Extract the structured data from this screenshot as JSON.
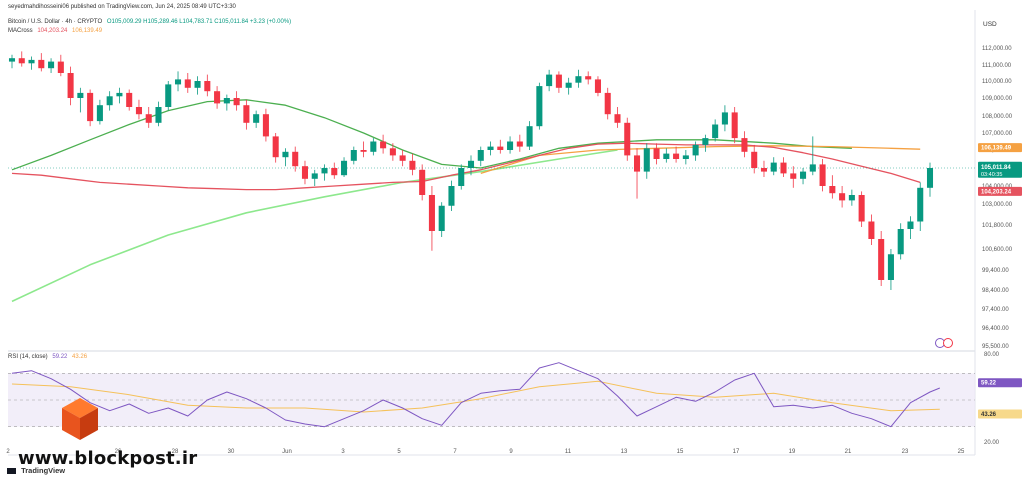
{
  "header": {
    "published_by": "seyedmahdihosseini06 published on TradingView.com, Jun 24, 2025 08:49 UTC+3:30",
    "symbol": "Bitcoin / U.S. Dollar · 4h · CRYPTO",
    "ohlc": "O105,009.29 H105,289.46 L104,783.71 C105,011.84 +3.23 (+0.00%)",
    "indicator": "MACross",
    "ma_fast_value": "104,203.24",
    "ma_slow_value": "106,139.49",
    "currency": "USD"
  },
  "rsi_label": "RSI (14, close)",
  "rsi_values_text": {
    "rsi": "59.22",
    "ma": "43.26"
  },
  "watermark": "www.blockpost.ir",
  "tv_brand": "TradingView",
  "colors": {
    "up": "#089981",
    "down": "#f23645",
    "ma_fast": "#e5535f",
    "ma_slow": "#f5a142",
    "ma_green": "#4caf50",
    "ma_lightgreen": "#8de88d",
    "rsi_line": "#7e57c2",
    "rsi_ma": "#f5c15a",
    "rsi_band": "#ede7f6",
    "last_price": "#089981"
  },
  "chart_data": [
    {
      "type": "candlestick",
      "y_ticks": [
        "112,000.00",
        "111,000.00",
        "110,000.00",
        "109,000.00",
        "108,000.00",
        "107,000.00",
        "106,000.00",
        "105,000.00",
        "104,000.00",
        "103,000.00",
        "101,800.00",
        "100,600.00",
        "99,400.00",
        "98,400.00",
        "97,400.00",
        "96,400.00",
        "95,500.00"
      ],
      "x_ticks": [
        "2",
        "26",
        "28",
        "30",
        "Jun",
        "3",
        "5",
        "7",
        "9",
        "11",
        "13",
        "15",
        "17",
        "19",
        "21",
        "23",
        "25"
      ],
      "price_labels": {
        "ma_slow": "106,139.49",
        "last": "105,011.84",
        "countdown": "03:40:35",
        "ma_fast": "104,203.24"
      },
      "candles": [
        [
          111200,
          111600,
          110800,
          111400
        ],
        [
          111400,
          111800,
          110900,
          111100
        ],
        [
          111100,
          111500,
          110700,
          111300
        ],
        [
          111300,
          111700,
          110600,
          110800
        ],
        [
          110800,
          111400,
          110500,
          111200
        ],
        [
          111200,
          111600,
          110300,
          110500
        ],
        [
          110500,
          110900,
          108600,
          109000
        ],
        [
          109000,
          109600,
          108200,
          109300
        ],
        [
          109300,
          109500,
          107400,
          107700
        ],
        [
          107700,
          108900,
          107500,
          108600
        ],
        [
          108600,
          109400,
          108300,
          109100
        ],
        [
          109100,
          109600,
          108700,
          109300
        ],
        [
          109300,
          109500,
          108300,
          108500
        ],
        [
          108500,
          108900,
          107800,
          108100
        ],
        [
          108100,
          108500,
          107300,
          107600
        ],
        [
          107600,
          108800,
          107400,
          108500
        ],
        [
          108500,
          110000,
          108300,
          109800
        ],
        [
          109800,
          110600,
          109400,
          110100
        ],
        [
          110100,
          110500,
          109300,
          109600
        ],
        [
          109600,
          110300,
          109200,
          110000
        ],
        [
          110000,
          110400,
          109100,
          109400
        ],
        [
          109400,
          109700,
          108400,
          108700
        ],
        [
          108700,
          109200,
          108300,
          109000
        ],
        [
          109000,
          109400,
          108300,
          108600
        ],
        [
          108600,
          108900,
          107200,
          107600
        ],
        [
          107600,
          108300,
          107300,
          108100
        ],
        [
          108100,
          108400,
          106500,
          106800
        ],
        [
          106800,
          107000,
          105300,
          105600
        ],
        [
          105600,
          106100,
          105100,
          105900
        ],
        [
          105900,
          106200,
          104800,
          105100
        ],
        [
          105100,
          105400,
          104100,
          104400
        ],
        [
          104400,
          104900,
          104000,
          104700
        ],
        [
          104700,
          105200,
          104300,
          105000
        ],
        [
          105000,
          105300,
          104400,
          104600
        ],
        [
          104600,
          105600,
          104500,
          105400
        ],
        [
          105400,
          106200,
          105200,
          106000
        ],
        [
          106000,
          106500,
          105600,
          105900
        ],
        [
          105900,
          106700,
          105700,
          106500
        ],
        [
          106500,
          106900,
          105800,
          106100
        ],
        [
          106100,
          106400,
          105400,
          105700
        ],
        [
          105700,
          106000,
          105100,
          105400
        ],
        [
          105400,
          105800,
          104600,
          104900
        ],
        [
          104900,
          105200,
          103200,
          103500
        ],
        [
          103500,
          104000,
          100500,
          101500
        ],
        [
          101500,
          103100,
          101200,
          102900
        ],
        [
          102900,
          104300,
          102600,
          104000
        ],
        [
          104000,
          105200,
          103800,
          105000
        ],
        [
          105000,
          105700,
          104600,
          105400
        ],
        [
          105400,
          106200,
          105100,
          106000
        ],
        [
          106000,
          106500,
          105700,
          106200
        ],
        [
          106200,
          106600,
          105800,
          106000
        ],
        [
          106000,
          106800,
          105800,
          106500
        ],
        [
          106500,
          106900,
          105900,
          106200
        ],
        [
          106200,
          107700,
          106000,
          107400
        ],
        [
          107400,
          109900,
          107200,
          109700
        ],
        [
          109700,
          110700,
          109400,
          110400
        ],
        [
          110400,
          110600,
          109300,
          109600
        ],
        [
          109600,
          110200,
          109200,
          109900
        ],
        [
          109900,
          110700,
          109600,
          110300
        ],
        [
          110300,
          110600,
          109800,
          110100
        ],
        [
          110100,
          110300,
          109100,
          109300
        ],
        [
          109300,
          109600,
          107800,
          108100
        ],
        [
          108100,
          108500,
          107300,
          107600
        ],
        [
          107600,
          107900,
          105400,
          105700
        ],
        [
          105700,
          106100,
          103300,
          104800
        ],
        [
          104800,
          106400,
          104400,
          106100
        ],
        [
          106100,
          106400,
          105200,
          105500
        ],
        [
          105500,
          106100,
          105300,
          105800
        ],
        [
          105800,
          106200,
          105300,
          105500
        ],
        [
          105500,
          106000,
          105200,
          105700
        ],
        [
          105700,
          106500,
          105400,
          106300
        ],
        [
          106300,
          106900,
          105900,
          106700
        ],
        [
          106700,
          107800,
          106500,
          107500
        ],
        [
          107500,
          108600,
          107100,
          108200
        ],
        [
          108200,
          108500,
          106400,
          106700
        ],
        [
          106700,
          107100,
          105600,
          105900
        ],
        [
          105900,
          106300,
          104700,
          105000
        ],
        [
          105000,
          105400,
          104500,
          104800
        ],
        [
          104800,
          105600,
          104600,
          105300
        ],
        [
          105300,
          105600,
          104500,
          104700
        ],
        [
          104700,
          105100,
          103900,
          104400
        ],
        [
          104400,
          105000,
          104100,
          104800
        ],
        [
          104800,
          106800,
          104600,
          105200
        ],
        [
          105200,
          105500,
          103700,
          104000
        ],
        [
          104000,
          104600,
          103300,
          103600
        ],
        [
          103600,
          104000,
          102800,
          103200
        ],
        [
          103200,
          103800,
          102900,
          103500
        ],
        [
          103500,
          103700,
          101700,
          102000
        ],
        [
          102000,
          102400,
          100800,
          101100
        ],
        [
          101100,
          101500,
          98600,
          98900
        ],
        [
          98900,
          100600,
          98400,
          100300
        ],
        [
          100300,
          101900,
          100000,
          101600
        ],
        [
          101600,
          102300,
          101100,
          102000
        ],
        [
          102000,
          104200,
          101500,
          103900
        ],
        [
          103900,
          105300,
          103400,
          105000
        ]
      ],
      "ma_fast": [
        [
          0,
          104700
        ],
        [
          3,
          104600
        ],
        [
          6,
          104400
        ],
        [
          9,
          104200
        ],
        [
          12,
          104100
        ],
        [
          15,
          104000
        ],
        [
          18,
          103900
        ],
        [
          21,
          103850
        ],
        [
          24,
          103800
        ],
        [
          27,
          103800
        ],
        [
          30,
          103900
        ],
        [
          33,
          104000
        ],
        [
          36,
          104100
        ],
        [
          39,
          104200
        ],
        [
          42,
          104250
        ],
        [
          45,
          104600
        ],
        [
          48,
          104900
        ],
        [
          51,
          105300
        ],
        [
          54,
          105700
        ],
        [
          57,
          106100
        ],
        [
          60,
          106350
        ],
        [
          63,
          106400
        ],
        [
          66,
          106350
        ],
        [
          69,
          106300
        ],
        [
          72,
          106300
        ],
        [
          75,
          106300
        ],
        [
          78,
          106150
        ],
        [
          81,
          105850
        ],
        [
          84,
          105500
        ],
        [
          87,
          105100
        ],
        [
          90,
          104700
        ],
        [
          93,
          104200
        ]
      ],
      "ma_slow": [
        [
          48,
          104700
        ],
        [
          54,
          105700
        ],
        [
          60,
          106000
        ],
        [
          66,
          106100
        ],
        [
          72,
          106200
        ],
        [
          78,
          106250
        ],
        [
          84,
          106200
        ],
        [
          90,
          106100
        ],
        [
          93,
          106050
        ]
      ],
      "ma_green": [
        [
          0,
          104900
        ],
        [
          4,
          105700
        ],
        [
          8,
          106600
        ],
        [
          12,
          107500
        ],
        [
          16,
          108300
        ],
        [
          20,
          108800
        ],
        [
          24,
          108900
        ],
        [
          28,
          108600
        ],
        [
          32,
          107900
        ],
        [
          36,
          107000
        ],
        [
          40,
          106000
        ],
        [
          44,
          105200
        ],
        [
          48,
          105000
        ],
        [
          52,
          105500
        ],
        [
          56,
          106100
        ],
        [
          60,
          106400
        ],
        [
          66,
          106600
        ],
        [
          72,
          106600
        ],
        [
          78,
          106400
        ],
        [
          82,
          106200
        ],
        [
          86,
          106100
        ]
      ],
      "ma_lightgreen": [
        [
          0,
          97800
        ],
        [
          8,
          99700
        ],
        [
          16,
          101300
        ],
        [
          24,
          102500
        ],
        [
          32,
          103400
        ],
        [
          40,
          104200
        ],
        [
          48,
          104800
        ],
        [
          56,
          105500
        ],
        [
          62,
          106000
        ]
      ]
    },
    {
      "type": "line",
      "title": "RSI (14, close)",
      "y_ticks": [
        "80.00",
        "40.00",
        "20.00"
      ],
      "ylim": [
        20,
        80
      ],
      "bands": [
        30,
        70
      ],
      "rsi": [
        [
          0,
          70
        ],
        [
          2,
          72
        ],
        [
          4,
          66
        ],
        [
          6,
          58
        ],
        [
          8,
          48
        ],
        [
          10,
          42
        ],
        [
          12,
          47
        ],
        [
          14,
          40
        ],
        [
          16,
          44
        ],
        [
          18,
          38
        ],
        [
          20,
          50
        ],
        [
          22,
          56
        ],
        [
          24,
          51
        ],
        [
          26,
          44
        ],
        [
          28,
          35
        ],
        [
          30,
          32
        ],
        [
          32,
          30
        ],
        [
          34,
          36
        ],
        [
          36,
          42
        ],
        [
          38,
          50
        ],
        [
          40,
          44
        ],
        [
          42,
          36
        ],
        [
          44,
          31
        ],
        [
          46,
          48
        ],
        [
          48,
          55
        ],
        [
          50,
          57
        ],
        [
          52,
          58
        ],
        [
          54,
          74
        ],
        [
          56,
          78
        ],
        [
          58,
          72
        ],
        [
          60,
          66
        ],
        [
          62,
          53
        ],
        [
          64,
          38
        ],
        [
          66,
          45
        ],
        [
          68,
          52
        ],
        [
          70,
          49
        ],
        [
          72,
          56
        ],
        [
          74,
          65
        ],
        [
          76,
          70
        ],
        [
          78,
          45
        ],
        [
          80,
          46
        ],
        [
          82,
          44
        ],
        [
          84,
          46
        ],
        [
          86,
          40
        ],
        [
          88,
          36
        ],
        [
          90,
          30
        ],
        [
          92,
          48
        ],
        [
          94,
          56
        ],
        [
          95,
          59
        ]
      ],
      "rsi_ma": [
        [
          0,
          62
        ],
        [
          6,
          60
        ],
        [
          12,
          54
        ],
        [
          18,
          46
        ],
        [
          24,
          44
        ],
        [
          30,
          44
        ],
        [
          36,
          41
        ],
        [
          42,
          44
        ],
        [
          48,
          51
        ],
        [
          54,
          60
        ],
        [
          60,
          64
        ],
        [
          66,
          55
        ],
        [
          72,
          52
        ],
        [
          78,
          55
        ],
        [
          84,
          48
        ],
        [
          90,
          42
        ],
        [
          95,
          43
        ]
      ]
    }
  ]
}
